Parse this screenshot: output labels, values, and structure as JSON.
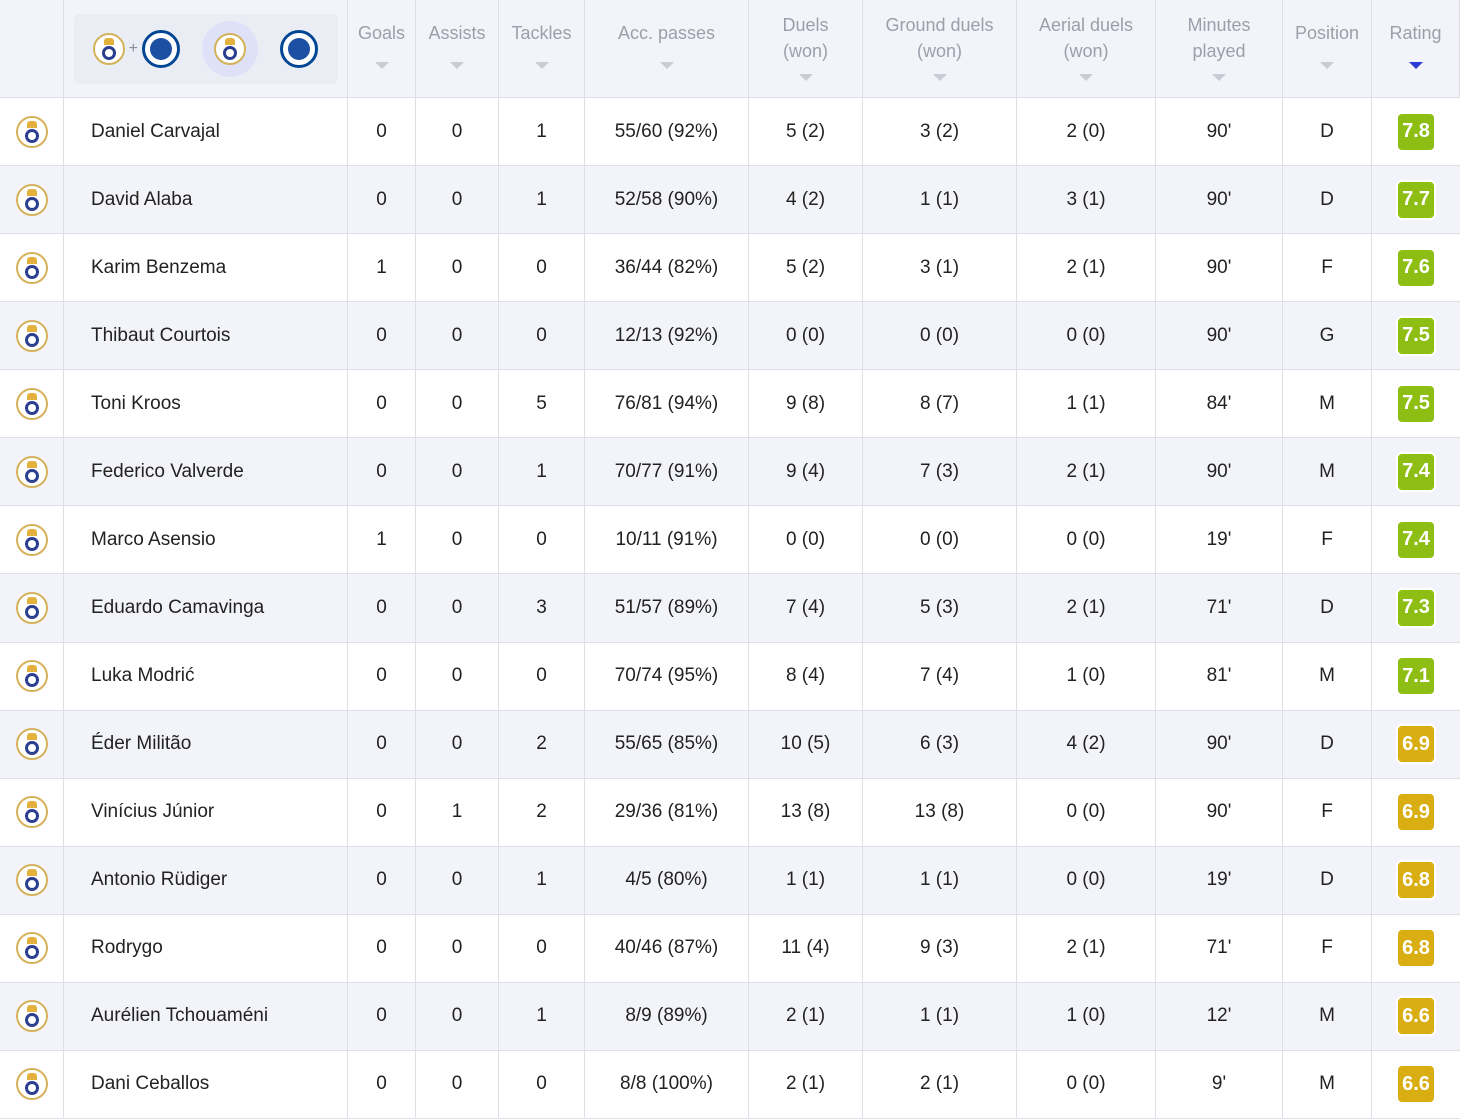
{
  "colors": {
    "rating_green": "#8ebe13",
    "rating_yellow": "#d9ae12",
    "sort_active": "#2b3bd1"
  },
  "filters": [
    {
      "name": "both-teams",
      "icons": [
        "real-madrid-badge-icon",
        "chelsea-badge-icon"
      ],
      "plus": "+"
    },
    {
      "name": "real-madrid",
      "icons": [
        "real-madrid-badge-icon"
      ],
      "selected": true
    },
    {
      "name": "chelsea",
      "icons": [
        "chelsea-badge-icon"
      ]
    }
  ],
  "columns": [
    {
      "key": "goals",
      "label": "Goals"
    },
    {
      "key": "assists",
      "label": "Assists"
    },
    {
      "key": "tackles",
      "label": "Tackles"
    },
    {
      "key": "acc_passes",
      "label": "Acc. passes"
    },
    {
      "key": "duels",
      "label": "Duels\n(won)"
    },
    {
      "key": "ground_duels",
      "label": "Ground duels\n(won)"
    },
    {
      "key": "aerial_duels",
      "label": "Aerial duels\n(won)"
    },
    {
      "key": "minutes",
      "label": "Minutes\nplayed"
    },
    {
      "key": "position",
      "label": "Position"
    },
    {
      "key": "rating",
      "label": "Rating",
      "active": true
    }
  ],
  "players": [
    {
      "name": "Daniel Carvajal",
      "goals": "0",
      "assists": "0",
      "tackles": "1",
      "acc_passes": "55/60 (92%)",
      "duels": "5 (2)",
      "ground_duels": "3 (2)",
      "aerial_duels": "2 (0)",
      "minutes": "90'",
      "position": "D",
      "rating": "7.8",
      "rating_level": "green"
    },
    {
      "name": "David Alaba",
      "goals": "0",
      "assists": "0",
      "tackles": "1",
      "acc_passes": "52/58 (90%)",
      "duels": "4 (2)",
      "ground_duels": "1 (1)",
      "aerial_duels": "3 (1)",
      "minutes": "90'",
      "position": "D",
      "rating": "7.7",
      "rating_level": "green"
    },
    {
      "name": "Karim Benzema",
      "goals": "1",
      "assists": "0",
      "tackles": "0",
      "acc_passes": "36/44 (82%)",
      "duels": "5 (2)",
      "ground_duels": "3 (1)",
      "aerial_duels": "2 (1)",
      "minutes": "90'",
      "position": "F",
      "rating": "7.6",
      "rating_level": "green"
    },
    {
      "name": "Thibaut Courtois",
      "goals": "0",
      "assists": "0",
      "tackles": "0",
      "acc_passes": "12/13 (92%)",
      "duels": "0 (0)",
      "ground_duels": "0 (0)",
      "aerial_duels": "0 (0)",
      "minutes": "90'",
      "position": "G",
      "rating": "7.5",
      "rating_level": "green"
    },
    {
      "name": "Toni Kroos",
      "goals": "0",
      "assists": "0",
      "tackles": "5",
      "acc_passes": "76/81 (94%)",
      "duels": "9 (8)",
      "ground_duels": "8 (7)",
      "aerial_duels": "1 (1)",
      "minutes": "84'",
      "position": "M",
      "rating": "7.5",
      "rating_level": "green"
    },
    {
      "name": "Federico Valverde",
      "goals": "0",
      "assists": "0",
      "tackles": "1",
      "acc_passes": "70/77 (91%)",
      "duels": "9 (4)",
      "ground_duels": "7 (3)",
      "aerial_duels": "2 (1)",
      "minutes": "90'",
      "position": "M",
      "rating": "7.4",
      "rating_level": "green"
    },
    {
      "name": "Marco Asensio",
      "goals": "1",
      "assists": "0",
      "tackles": "0",
      "acc_passes": "10/11 (91%)",
      "duels": "0 (0)",
      "ground_duels": "0 (0)",
      "aerial_duels": "0 (0)",
      "minutes": "19'",
      "position": "F",
      "rating": "7.4",
      "rating_level": "green"
    },
    {
      "name": "Eduardo Camavinga",
      "goals": "0",
      "assists": "0",
      "tackles": "3",
      "acc_passes": "51/57 (89%)",
      "duels": "7 (4)",
      "ground_duels": "5 (3)",
      "aerial_duels": "2 (1)",
      "minutes": "71'",
      "position": "D",
      "rating": "7.3",
      "rating_level": "green"
    },
    {
      "name": "Luka Modrić",
      "goals": "0",
      "assists": "0",
      "tackles": "0",
      "acc_passes": "70/74 (95%)",
      "duels": "8 (4)",
      "ground_duels": "7 (4)",
      "aerial_duels": "1 (0)",
      "minutes": "81'",
      "position": "M",
      "rating": "7.1",
      "rating_level": "green"
    },
    {
      "name": "Éder Militão",
      "goals": "0",
      "assists": "0",
      "tackles": "2",
      "acc_passes": "55/65 (85%)",
      "duels": "10 (5)",
      "ground_duels": "6 (3)",
      "aerial_duels": "4 (2)",
      "minutes": "90'",
      "position": "D",
      "rating": "6.9",
      "rating_level": "yellow"
    },
    {
      "name": "Vinícius Júnior",
      "goals": "0",
      "assists": "1",
      "tackles": "2",
      "acc_passes": "29/36 (81%)",
      "duels": "13 (8)",
      "ground_duels": "13 (8)",
      "aerial_duels": "0 (0)",
      "minutes": "90'",
      "position": "F",
      "rating": "6.9",
      "rating_level": "yellow"
    },
    {
      "name": "Antonio Rüdiger",
      "goals": "0",
      "assists": "0",
      "tackles": "1",
      "acc_passes": "4/5 (80%)",
      "duels": "1 (1)",
      "ground_duels": "1 (1)",
      "aerial_duels": "0 (0)",
      "minutes": "19'",
      "position": "D",
      "rating": "6.8",
      "rating_level": "yellow"
    },
    {
      "name": "Rodrygo",
      "goals": "0",
      "assists": "0",
      "tackles": "0",
      "acc_passes": "40/46 (87%)",
      "duels": "11 (4)",
      "ground_duels": "9 (3)",
      "aerial_duels": "2 (1)",
      "minutes": "71'",
      "position": "F",
      "rating": "6.8",
      "rating_level": "yellow"
    },
    {
      "name": "Aurélien Tchouaméni",
      "goals": "0",
      "assists": "0",
      "tackles": "1",
      "acc_passes": "8/9 (89%)",
      "duels": "2 (1)",
      "ground_duels": "1 (1)",
      "aerial_duels": "1 (0)",
      "minutes": "12'",
      "position": "M",
      "rating": "6.6",
      "rating_level": "yellow"
    },
    {
      "name": "Dani Ceballos",
      "goals": "0",
      "assists": "0",
      "tackles": "0",
      "acc_passes": "8/8 (100%)",
      "duels": "2 (1)",
      "ground_duels": "2 (1)",
      "aerial_duels": "0 (0)",
      "minutes": "9'",
      "position": "M",
      "rating": "6.6",
      "rating_level": "yellow"
    }
  ]
}
